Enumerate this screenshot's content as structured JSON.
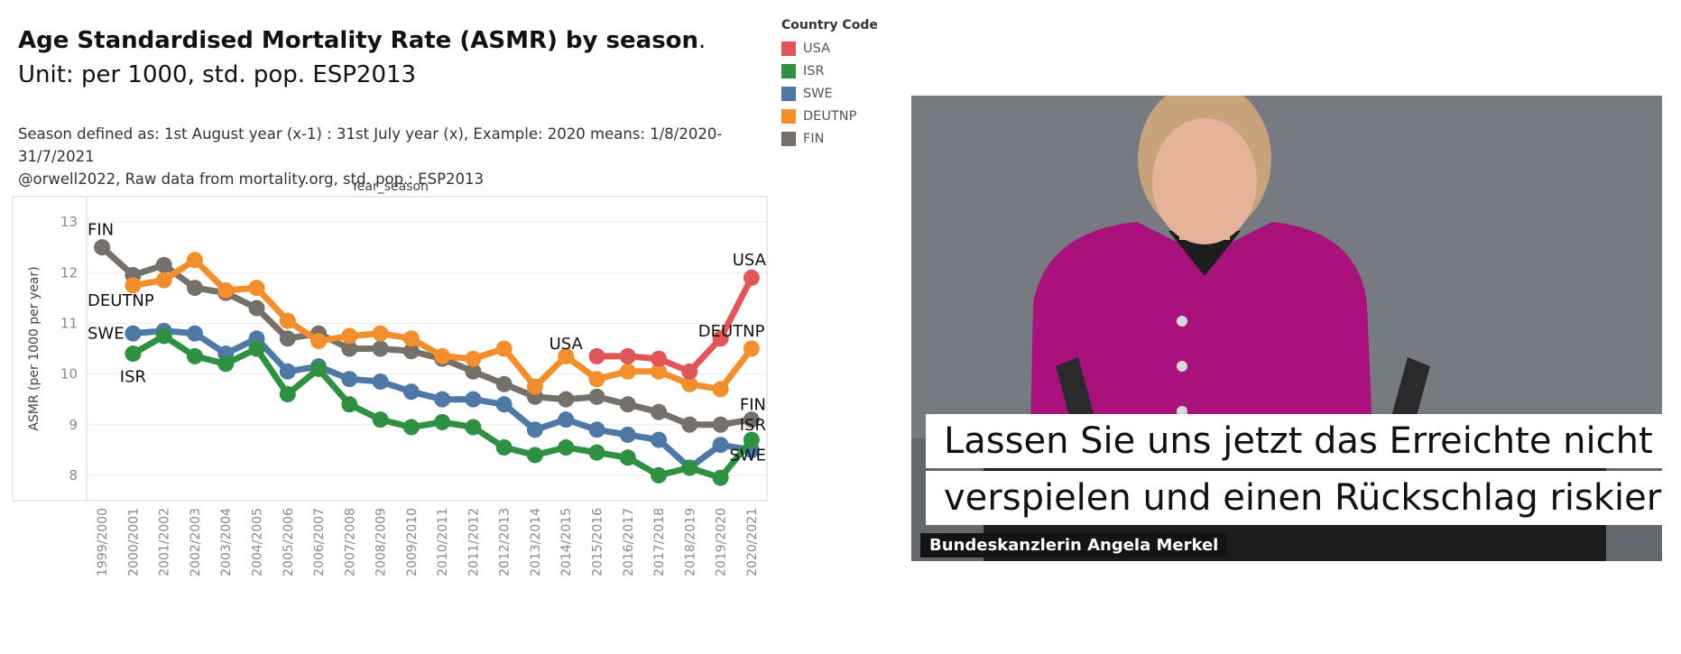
{
  "header": {
    "title_bold": "Age Standardised Mortality Rate (ASMR) by season",
    "title_rest": ". Unit: per 1000, std. pop. ESP2013",
    "season_label": "Season defined as:",
    "season_text": " 1st August year (x-1) : 31st July  year (x), Example: 2020 means: 1/8/2020-31/7/2021",
    "credit": "@orwell2022,  Raw data from mortality.org, std. pop.: ESP2013"
  },
  "legend": {
    "title": "Country Code",
    "items": [
      {
        "label": "USA",
        "color": "#e15759"
      },
      {
        "label": "ISR",
        "color": "#2e9142"
      },
      {
        "label": "SWE",
        "color": "#4e79a7"
      },
      {
        "label": "DEUTNP",
        "color": "#f28e2b"
      },
      {
        "label": "FIN",
        "color": "#76706b"
      }
    ]
  },
  "chart_data": {
    "type": "line",
    "title": "",
    "xlabel": "Year_season",
    "ylabel": "ASMR (per 1000 per year)",
    "ylim": [
      7.5,
      13.5
    ],
    "yticks": [
      8,
      9,
      10,
      11,
      12,
      13
    ],
    "grid": true,
    "categories": [
      "1999/2000",
      "2000/2001",
      "2001/2002",
      "2002/2003",
      "2003/2004",
      "2004/2005",
      "2005/2006",
      "2006/2007",
      "2007/2008",
      "2008/2009",
      "2009/2010",
      "2010/2011",
      "2011/2012",
      "2012/2013",
      "2013/2014",
      "2014/2015",
      "2015/2016",
      "2016/2017",
      "2017/2018",
      "2018/2019",
      "2019/2020",
      "2020/2021"
    ],
    "series": [
      {
        "name": "FIN",
        "color": "#76706b",
        "values": [
          12.5,
          11.95,
          12.15,
          11.7,
          11.6,
          11.3,
          10.7,
          10.8,
          10.5,
          10.5,
          10.45,
          10.3,
          10.05,
          9.8,
          9.55,
          9.5,
          9.55,
          9.4,
          9.25,
          9.0,
          9.0,
          9.1
        ]
      },
      {
        "name": "DEUTNP",
        "color": "#f28e2b",
        "values": [
          null,
          11.75,
          11.85,
          12.25,
          11.65,
          11.7,
          11.05,
          10.65,
          10.75,
          10.8,
          10.7,
          10.35,
          10.3,
          10.5,
          9.75,
          10.35,
          9.9,
          10.05,
          10.05,
          9.8,
          9.7,
          10.5
        ]
      },
      {
        "name": "SWE",
        "color": "#4e79a7",
        "values": [
          null,
          10.8,
          10.85,
          10.8,
          10.4,
          10.7,
          10.05,
          10.15,
          9.9,
          9.85,
          9.65,
          9.5,
          9.5,
          9.4,
          8.9,
          9.1,
          8.9,
          8.8,
          8.7,
          8.15,
          8.6,
          8.5
        ]
      },
      {
        "name": "ISR",
        "color": "#2e9142",
        "values": [
          null,
          10.4,
          10.75,
          10.35,
          10.2,
          10.5,
          9.6,
          10.1,
          9.4,
          9.1,
          8.95,
          9.05,
          8.95,
          8.55,
          8.4,
          8.55,
          8.45,
          8.35,
          8.0,
          8.15,
          7.95,
          8.7
        ]
      },
      {
        "name": "USA",
        "color": "#e15759",
        "values": [
          null,
          null,
          null,
          null,
          null,
          null,
          null,
          null,
          null,
          null,
          null,
          null,
          null,
          null,
          null,
          null,
          10.35,
          10.35,
          10.3,
          10.05,
          10.7,
          11.9
        ]
      }
    ],
    "annotations": [
      {
        "text": "FIN",
        "x": "1999/2000",
        "y": 12.85
      },
      {
        "text": "DEUTNP",
        "x": "1999/2000",
        "y": 11.45
      },
      {
        "text": "SWE",
        "x": "1999/2000",
        "y": 10.8
      },
      {
        "text": "ISR",
        "x": "2000/2001",
        "y": 9.95
      },
      {
        "text": "USA",
        "x": "2014/2015",
        "y": 10.6
      },
      {
        "text": "USA",
        "x": "2020/2021",
        "y": 12.25
      },
      {
        "text": "DEUTNP",
        "x": "2019/2020",
        "y": 10.85
      },
      {
        "text": "FIN",
        "x": "2020/2021",
        "y": 9.4
      },
      {
        "text": "ISR",
        "x": "2020/2021",
        "y": 9.0
      },
      {
        "text": "SWE",
        "x": "2020/2021",
        "y": 8.4
      }
    ]
  },
  "photo": {
    "caption_line1": "Lassen Sie uns jetzt das Erreichte nicht",
    "caption_line2": "verspielen und einen Rückschlag riskieren.",
    "name_tag": "Bundeskanzlerin Angela Merkel",
    "colors": {
      "background": "#777a80",
      "jacket": "#a8127a",
      "skin": "#e5b39a",
      "hair": "#c6a37a",
      "lectern": "#1d1d1f"
    }
  }
}
